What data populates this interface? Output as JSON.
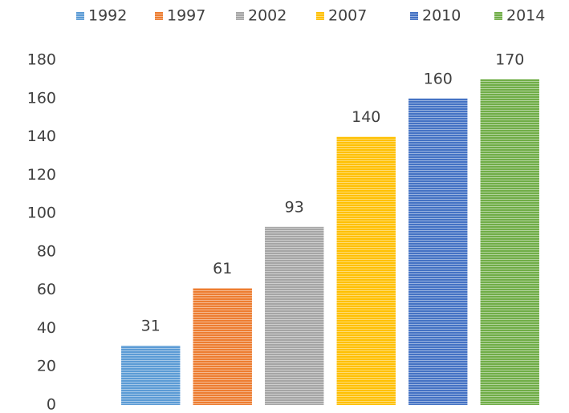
{
  "chart_data": {
    "type": "bar",
    "categories": [
      null
    ],
    "series": [
      {
        "name": "1992",
        "color": "#5b9bd5",
        "values": [
          31
        ]
      },
      {
        "name": "1997",
        "color": "#ed7d31",
        "values": [
          61
        ]
      },
      {
        "name": "2002",
        "color": "#a5a5a5",
        "values": [
          93
        ]
      },
      {
        "name": "2007",
        "color": "#ffc000",
        "values": [
          140
        ]
      },
      {
        "name": "2010",
        "color": "#4472c4",
        "values": [
          160
        ]
      },
      {
        "name": "2014",
        "color": "#70ad47",
        "values": [
          170
        ]
      }
    ],
    "ylim": [
      0,
      180
    ],
    "yticks": [
      0,
      20,
      40,
      60,
      80,
      100,
      120,
      140,
      160,
      180
    ],
    "grid": false,
    "legend": "top",
    "data_labels": true
  }
}
